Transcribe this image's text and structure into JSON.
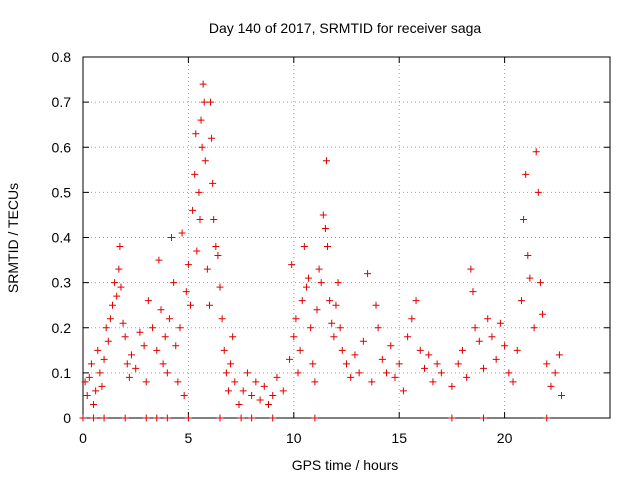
{
  "chart_data": {
    "type": "scatter",
    "title": "Day 140 of 2017, SRMTID for receiver saga",
    "xlabel": "GPS time / hours",
    "ylabel": "SRMTID / TECUs",
    "xlim": [
      0,
      25
    ],
    "ylim": [
      0,
      0.8
    ],
    "xticks": [
      0,
      5,
      10,
      15,
      20
    ],
    "xtick_labels": [
      "0",
      "5",
      "10",
      "15",
      "20"
    ],
    "yticks": [
      0,
      0.1,
      0.2,
      0.3,
      0.4,
      0.5,
      0.6,
      0.7,
      0.8
    ],
    "ytick_labels": [
      "0",
      "0.1",
      "0.2",
      "0.3",
      "0.4",
      "0.5",
      "0.6",
      "0.7",
      "0.8"
    ],
    "grid": true,
    "marker": "+",
    "color": "#e00000",
    "series": [
      {
        "name": "SRMTID",
        "points": [
          [
            0.1,
            0.08
          ],
          [
            0.2,
            0.05
          ],
          [
            0.3,
            0.09
          ],
          [
            0.4,
            0.12
          ],
          [
            0.5,
            0.03
          ],
          [
            0.6,
            0.06
          ],
          [
            0.7,
            0.15
          ],
          [
            0.8,
            0.1
          ],
          [
            0.9,
            0.07
          ],
          [
            1.0,
            0.13
          ],
          [
            1.1,
            0.2
          ],
          [
            1.2,
            0.17
          ],
          [
            1.3,
            0.22
          ],
          [
            1.4,
            0.25
          ],
          [
            1.5,
            0.3
          ],
          [
            1.6,
            0.27
          ],
          [
            1.7,
            0.33
          ],
          [
            1.75,
            0.38
          ],
          [
            1.8,
            0.29
          ],
          [
            1.9,
            0.21
          ],
          [
            2.0,
            0.18
          ],
          [
            2.1,
            0.12
          ],
          [
            2.2,
            0.09
          ],
          [
            2.3,
            0.14
          ],
          [
            2.5,
            0.11
          ],
          [
            2.7,
            0.19
          ],
          [
            2.9,
            0.16
          ],
          [
            3.0,
            0.08
          ],
          [
            3.1,
            0.26
          ],
          [
            3.3,
            0.2
          ],
          [
            3.5,
            0.15
          ],
          [
            3.6,
            0.35
          ],
          [
            3.7,
            0.24
          ],
          [
            3.8,
            0.12
          ],
          [
            3.9,
            0.18
          ],
          [
            4.0,
            0.1
          ],
          [
            4.1,
            0.22
          ],
          [
            4.2,
            0.4
          ],
          [
            4.3,
            0.3
          ],
          [
            4.4,
            0.16
          ],
          [
            4.5,
            0.08
          ],
          [
            4.6,
            0.2
          ],
          [
            4.7,
            0.41
          ],
          [
            4.8,
            0.05
          ],
          [
            4.9,
            0.28
          ],
          [
            5.0,
            0.34
          ],
          [
            5.1,
            0.25
          ],
          [
            5.2,
            0.46
          ],
          [
            5.3,
            0.54
          ],
          [
            5.35,
            0.63
          ],
          [
            5.4,
            0.37
          ],
          [
            5.5,
            0.5
          ],
          [
            5.55,
            0.44
          ],
          [
            5.6,
            0.66
          ],
          [
            5.65,
            0.6
          ],
          [
            5.7,
            0.74
          ],
          [
            5.75,
            0.7
          ],
          [
            5.8,
            0.57
          ],
          [
            5.9,
            0.33
          ],
          [
            6.0,
            0.25
          ],
          [
            6.05,
            0.7
          ],
          [
            6.1,
            0.62
          ],
          [
            6.15,
            0.52
          ],
          [
            6.2,
            0.44
          ],
          [
            6.3,
            0.38
          ],
          [
            6.4,
            0.36
          ],
          [
            6.5,
            0.29
          ],
          [
            6.6,
            0.22
          ],
          [
            6.7,
            0.15
          ],
          [
            6.8,
            0.1
          ],
          [
            6.9,
            0.06
          ],
          [
            7.0,
            0.12
          ],
          [
            7.1,
            0.18
          ],
          [
            7.2,
            0.08
          ],
          [
            7.4,
            0.03
          ],
          [
            7.6,
            0.06
          ],
          [
            7.8,
            0.1
          ],
          [
            8.0,
            0.05
          ],
          [
            8.2,
            0.08
          ],
          [
            8.4,
            0.04
          ],
          [
            8.6,
            0.07
          ],
          [
            8.8,
            0.03
          ],
          [
            9.0,
            0.05
          ],
          [
            9.2,
            0.09
          ],
          [
            9.5,
            0.06
          ],
          [
            9.8,
            0.13
          ],
          [
            9.9,
            0.34
          ],
          [
            10.0,
            0.18
          ],
          [
            10.1,
            0.22
          ],
          [
            10.2,
            0.1
          ],
          [
            10.3,
            0.15
          ],
          [
            10.4,
            0.26
          ],
          [
            10.5,
            0.38
          ],
          [
            10.6,
            0.29
          ],
          [
            10.7,
            0.31
          ],
          [
            10.8,
            0.2
          ],
          [
            10.9,
            0.12
          ],
          [
            11.0,
            0.08
          ],
          [
            11.1,
            0.24
          ],
          [
            11.2,
            0.33
          ],
          [
            11.3,
            0.3
          ],
          [
            11.4,
            0.45
          ],
          [
            11.5,
            0.42
          ],
          [
            11.55,
            0.57
          ],
          [
            11.6,
            0.38
          ],
          [
            11.7,
            0.26
          ],
          [
            11.8,
            0.21
          ],
          [
            11.9,
            0.18
          ],
          [
            12.0,
            0.25
          ],
          [
            12.1,
            0.3
          ],
          [
            12.2,
            0.2
          ],
          [
            12.3,
            0.15
          ],
          [
            12.5,
            0.12
          ],
          [
            12.7,
            0.09
          ],
          [
            12.9,
            0.14
          ],
          [
            13.1,
            0.1
          ],
          [
            13.3,
            0.17
          ],
          [
            13.5,
            0.32
          ],
          [
            13.7,
            0.08
          ],
          [
            13.9,
            0.25
          ],
          [
            14.0,
            0.2
          ],
          [
            14.2,
            0.13
          ],
          [
            14.4,
            0.1
          ],
          [
            14.6,
            0.16
          ],
          [
            14.8,
            0.09
          ],
          [
            15.0,
            0.12
          ],
          [
            15.2,
            0.06
          ],
          [
            15.4,
            0.18
          ],
          [
            15.6,
            0.22
          ],
          [
            15.8,
            0.26
          ],
          [
            16.0,
            0.15
          ],
          [
            16.2,
            0.11
          ],
          [
            16.4,
            0.14
          ],
          [
            16.6,
            0.08
          ],
          [
            16.8,
            0.12
          ],
          [
            17.0,
            0.1
          ],
          [
            17.5,
            0.07
          ],
          [
            17.8,
            0.12
          ],
          [
            18.0,
            0.15
          ],
          [
            18.2,
            0.09
          ],
          [
            18.4,
            0.33
          ],
          [
            18.5,
            0.28
          ],
          [
            18.6,
            0.2
          ],
          [
            18.8,
            0.17
          ],
          [
            19.0,
            0.11
          ],
          [
            19.2,
            0.22
          ],
          [
            19.4,
            0.18
          ],
          [
            19.6,
            0.13
          ],
          [
            19.8,
            0.21
          ],
          [
            20.0,
            0.16
          ],
          [
            20.2,
            0.1
          ],
          [
            20.4,
            0.08
          ],
          [
            20.6,
            0.15
          ],
          [
            20.8,
            0.26
          ],
          [
            20.9,
            0.44
          ],
          [
            21.0,
            0.54
          ],
          [
            21.1,
            0.36
          ],
          [
            21.2,
            0.31
          ],
          [
            21.4,
            0.2
          ],
          [
            21.5,
            0.59
          ],
          [
            21.6,
            0.5
          ],
          [
            21.7,
            0.3
          ],
          [
            21.8,
            0.23
          ],
          [
            22.0,
            0.12
          ],
          [
            22.2,
            0.07
          ],
          [
            22.4,
            0.1
          ],
          [
            22.6,
            0.14
          ],
          [
            22.7,
            0.05
          ],
          [
            0.0,
            0.0
          ],
          [
            0.5,
            0.0
          ],
          [
            1.0,
            0.0
          ],
          [
            2.0,
            0.0
          ],
          [
            3.0,
            0.0
          ],
          [
            3.5,
            0.0
          ],
          [
            4.0,
            0.0
          ],
          [
            5.0,
            0.0
          ],
          [
            6.5,
            0.0
          ],
          [
            7.5,
            0.0
          ],
          [
            8.0,
            0.0
          ],
          [
            9.0,
            0.0
          ],
          [
            11.0,
            0.0
          ],
          [
            17.5,
            0.0
          ],
          [
            19.0,
            0.0
          ],
          [
            22.0,
            0.0
          ]
        ]
      }
    ]
  }
}
